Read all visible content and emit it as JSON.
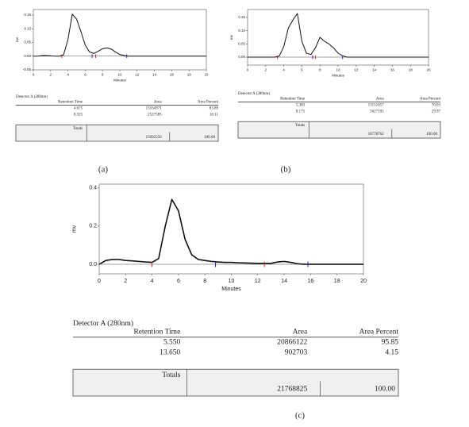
{
  "chart_data": [
    {
      "type": "line",
      "ylabel": "mv",
      "xlabel": "Minutes",
      "x": [
        0,
        0.5,
        1,
        1.5,
        2,
        2.5,
        3,
        3.5,
        4,
        4.5,
        5,
        5.5,
        6,
        6.5,
        7,
        7.5,
        8,
        8.5,
        9,
        9.5,
        10,
        10.5,
        11,
        11.5,
        12,
        12.5,
        13,
        13.5,
        14,
        14.5,
        15,
        15.5,
        16,
        16.5,
        17,
        17.5,
        18,
        18.5,
        19,
        19.5,
        20
      ],
      "series": [
        {
          "color": "#111",
          "values": [
            0,
            0,
            0.002,
            0.002,
            0.001,
            0,
            0,
            0.005,
            0.06,
            0.153,
            0.135,
            0.09,
            0.04,
            0.015,
            0.01,
            0.018,
            0.027,
            0.03,
            0.026,
            0.015,
            0.006,
            0.002,
            0,
            0,
            0,
            0,
            0,
            0,
            0,
            0,
            0,
            0,
            0,
            0,
            0,
            0,
            0,
            0,
            0,
            0,
            0
          ]
        }
      ],
      "markers": [
        {
          "x": 3.3,
          "color": "#d22"
        },
        {
          "x": 6.8,
          "color": "#22c"
        },
        {
          "x": 7.2,
          "color": "#d22"
        },
        {
          "x": 10.8,
          "color": "#22c"
        }
      ],
      "xlim": [
        0,
        20
      ],
      "xticks": [
        0,
        2,
        4,
        6,
        8,
        10,
        12,
        14,
        16,
        18,
        20
      ],
      "ylim": [
        -0.05,
        0.17
      ],
      "yticks": [
        {
          "value": -0.05,
          "label": "-0.05"
        },
        {
          "value": 0,
          "label": "0.00"
        },
        {
          "value": 0.05,
          "label": "0.05"
        },
        {
          "value": 0.1,
          "label": "0.10"
        },
        {
          "value": 0.15,
          "label": "0.15"
        }
      ]
    },
    {
      "type": "line",
      "ylabel": "mv",
      "xlabel": "Minutes",
      "x": [
        0,
        0.5,
        1,
        1.5,
        2,
        2.5,
        3,
        3.5,
        4,
        4.5,
        5,
        5.5,
        6,
        6.5,
        7,
        7.5,
        8,
        8.5,
        9,
        9.5,
        10,
        10.5,
        11,
        11.5,
        12,
        12.5,
        13,
        13.5,
        14,
        14.5,
        15,
        15.5,
        16,
        16.5,
        17,
        17.5,
        18,
        18.5,
        19,
        19.5,
        20
      ],
      "series": [
        {
          "color": "#111",
          "values": [
            0,
            0,
            0,
            0,
            0,
            0,
            0,
            0.004,
            0.04,
            0.11,
            0.14,
            0.165,
            0.06,
            0.015,
            0.01,
            0.035,
            0.075,
            0.06,
            0.05,
            0.035,
            0.015,
            0.005,
            0,
            0,
            0,
            0,
            0,
            0,
            0,
            0,
            0,
            0,
            0,
            0,
            0,
            0,
            0,
            0,
            0,
            0,
            0
          ]
        }
      ],
      "markers": [
        {
          "x": 3.3,
          "color": "#d22"
        },
        {
          "x": 7.2,
          "color": "#22c"
        },
        {
          "x": 7.5,
          "color": "#d22"
        },
        {
          "x": 10.5,
          "color": "#22c"
        }
      ],
      "xlim": [
        0,
        20
      ],
      "xticks": [
        0,
        2,
        4,
        6,
        8,
        10,
        12,
        14,
        16,
        18,
        20
      ],
      "ylim": [
        -0.03,
        0.18
      ],
      "yticks": [
        {
          "value": 0,
          "label": "0.00"
        },
        {
          "value": 0.05,
          "label": "0.05"
        },
        {
          "value": 0.1,
          "label": "0.10"
        },
        {
          "value": 0.15,
          "label": "0.15"
        }
      ]
    },
    {
      "type": "line",
      "ylabel": "mv",
      "xlabel": "Minutes",
      "x": [
        0,
        0.5,
        1,
        1.5,
        2,
        2.5,
        3,
        3.5,
        4,
        4.5,
        5,
        5.5,
        6,
        6.5,
        7,
        7.5,
        8,
        8.5,
        9,
        9.5,
        10,
        10.5,
        11,
        11.5,
        12,
        12.5,
        13,
        13.5,
        14,
        14.5,
        15,
        15.5,
        16,
        16.5,
        17,
        17.5,
        18,
        18.5,
        19,
        19.5,
        20
      ],
      "series": [
        {
          "color": "#111",
          "values": [
            0,
            0.02,
            0.025,
            0.025,
            0.02,
            0.018,
            0.015,
            0.012,
            0.01,
            0.03,
            0.2,
            0.34,
            0.28,
            0.13,
            0.05,
            0.025,
            0.02,
            0.015,
            0.012,
            0.01,
            0.01,
            0.008,
            0.007,
            0.006,
            0.005,
            0.005,
            0.005,
            0.012,
            0.015,
            0.01,
            0.003,
            0,
            0,
            0,
            0,
            0,
            0,
            0,
            0,
            0,
            0
          ]
        }
      ],
      "markers": [
        {
          "x": 4.0,
          "color": "#d22"
        },
        {
          "x": 8.8,
          "color": "#22c"
        },
        {
          "x": 12.5,
          "color": "#d22"
        },
        {
          "x": 15.8,
          "color": "#22c"
        }
      ],
      "xlim": [
        0,
        20
      ],
      "xticks": [
        0,
        2,
        4,
        6,
        8,
        10,
        12,
        14,
        16,
        18,
        20
      ],
      "ylim": [
        -0.05,
        0.42
      ],
      "yticks": [
        {
          "value": 0,
          "label": "0.0"
        },
        {
          "value": 0.2,
          "label": "0.2"
        },
        {
          "value": 0.4,
          "label": "0.4"
        }
      ]
    }
  ],
  "tables": [
    {
      "title": "Detector A (280nm)",
      "columns": [
        "Retention Time",
        "Area",
        "Area Percent"
      ],
      "rows": [
        [
          "4.675",
          "13164971",
          "83.89"
        ],
        [
          "8.325",
          "2527585",
          "16.11"
        ]
      ],
      "totals_label": "Totals",
      "totals": [
        "15692556",
        "100.00"
      ]
    },
    {
      "title": "Detector A (280nm)",
      "columns": [
        "Retention Time",
        "Area",
        "Area Percent"
      ],
      "rows": [
        [
          "5.383",
          "13151657",
          "70.03"
        ],
        [
          "8.175",
          "5627105",
          "29.97"
        ]
      ],
      "totals_label": "Totals",
      "totals": [
        "18778762",
        "100.00"
      ]
    },
    {
      "title": "Detector A (280nm)",
      "columns": [
        "Retention Time",
        "Area",
        "Area Percent"
      ],
      "rows": [
        [
          "5.550",
          "20866122",
          "95.85"
        ],
        [
          "13.650",
          "902703",
          "4.15"
        ]
      ],
      "totals_label": "Totals",
      "totals": [
        "21768825",
        "100.00"
      ]
    }
  ],
  "captions": [
    "(a)",
    "(b)",
    "(c)"
  ]
}
